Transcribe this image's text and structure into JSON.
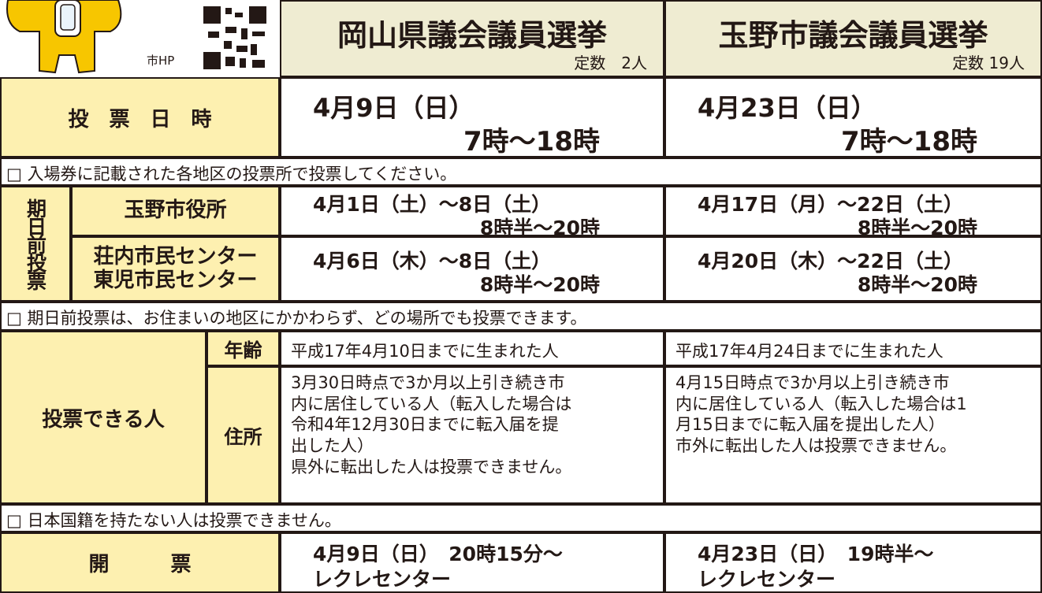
{
  "header": {
    "hp_label": "市HP",
    "columns": [
      {
        "title": "岡山県議会議員選挙",
        "seats": "定数　2人"
      },
      {
        "title": "玉野市議会議員選挙",
        "seats": "定数 19人"
      }
    ]
  },
  "voting_date": {
    "label": "投　票　日　時",
    "values": [
      {
        "date": "4月9日（日）",
        "time": "7時〜18時"
      },
      {
        "date": "4月23日（日）",
        "time": "7時〜18時"
      }
    ]
  },
  "notes": [
    "□ 入場券に記載された各地区の投票所で投票してください。",
    "□ 期日前投票は、お住まいの地区にかかわらず、どの場所でも投票できます。",
    "□ 日本国籍を持たない人は投票できません。"
  ],
  "early_voting": {
    "label": "期日前投票",
    "places": [
      {
        "name": [
          "玉野市役所"
        ],
        "values": [
          {
            "date": "4月1日（土）〜8日（土）",
            "time": "8時半〜20時"
          },
          {
            "date": "4月17日（月）〜22日（土）",
            "time": "8時半〜20時"
          }
        ]
      },
      {
        "name": [
          "荘内市民センター",
          "東児市民センター"
        ],
        "values": [
          {
            "date": "4月6日（木）〜8日（土）",
            "time": "8時半〜20時"
          },
          {
            "date": "4月20日（木）〜22日（土）",
            "time": "8時半〜20時"
          }
        ]
      }
    ]
  },
  "eligibility": {
    "label": "投票できる人",
    "age": {
      "label": "年齢",
      "values": [
        "平成17年4月10日までに生まれた人",
        "平成17年4月24日までに生まれた人"
      ]
    },
    "address": {
      "label": "住所",
      "values": [
        [
          "3月30日時点で3か月以上引き続き市",
          "内に居住している人（転入した場合は",
          "令和4年12月30日までに転入届を提",
          "出した人）",
          "県外に転出した人は投票できません。"
        ],
        [
          "4月15日時点で3か月以上引き続き市",
          "内に居住している人（転入した場合は1",
          "月15日までに転入届を提出した人）",
          "市外に転出した人は投票できません。"
        ]
      ]
    }
  },
  "counting": {
    "label": "開　　　票",
    "values": [
      {
        "time": "4月9日（日）　20時15分〜",
        "place": "レクレセンター"
      },
      {
        "time": "4月23日（日）　19時半〜",
        "place": "レクレセンター"
      }
    ]
  }
}
